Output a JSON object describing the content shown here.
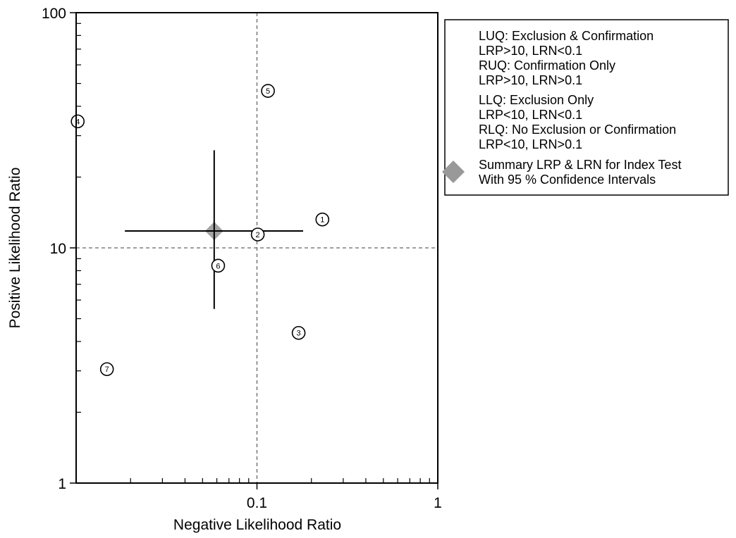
{
  "chart_data": {
    "type": "scatter",
    "xlabel": "Negative Likelihood Ratio",
    "ylabel": "Positive Likelihood Ratio",
    "x_scale": "log",
    "y_scale": "log",
    "xlim": [
      0.01,
      1
    ],
    "ylim": [
      1,
      100
    ],
    "x_ticks": [
      {
        "value": 0.1,
        "label": "0.1"
      },
      {
        "value": 1,
        "label": "1"
      }
    ],
    "y_ticks": [
      {
        "value": 1,
        "label": "1"
      },
      {
        "value": 10,
        "label": "10"
      },
      {
        "value": 100,
        "label": "100"
      }
    ],
    "reference_lines": {
      "x": 0.1,
      "y": 10,
      "style": "dashed"
    },
    "studies": [
      {
        "label": "1",
        "lrn": 0.23,
        "lrp": 13.2
      },
      {
        "label": "2",
        "lrn": 0.101,
        "lrp": 11.4
      },
      {
        "label": "3",
        "lrn": 0.17,
        "lrp": 4.35
      },
      {
        "label": "4",
        "lrn": 0.0102,
        "lrp": 34.5
      },
      {
        "label": "5",
        "lrn": 0.115,
        "lrp": 46.5
      },
      {
        "label": "6",
        "lrn": 0.061,
        "lrp": 8.4
      },
      {
        "label": "7",
        "lrn": 0.0148,
        "lrp": 3.05
      }
    ],
    "summary": {
      "lrn": 0.058,
      "lrp": 11.8,
      "lrn_ci": [
        0.0186,
        0.18
      ],
      "lrp_ci": [
        5.5,
        26
      ],
      "color": "#999999"
    },
    "legend": {
      "placement": "right",
      "entries": [
        "LUQ: Exclusion & Confirmation",
        "LRP>10, LRN<0.1",
        "RUQ: Confirmation Only",
        "LRP>10, LRN>0.1",
        "LLQ: Exclusion Only",
        "LRP<10, LRN<0.1",
        "RLQ: No Exclusion or Confirmation",
        "LRP<10, LRN>0.1",
        "Summary LRP & LRN for Index Test",
        "With 95 % Confidence Intervals"
      ]
    }
  }
}
